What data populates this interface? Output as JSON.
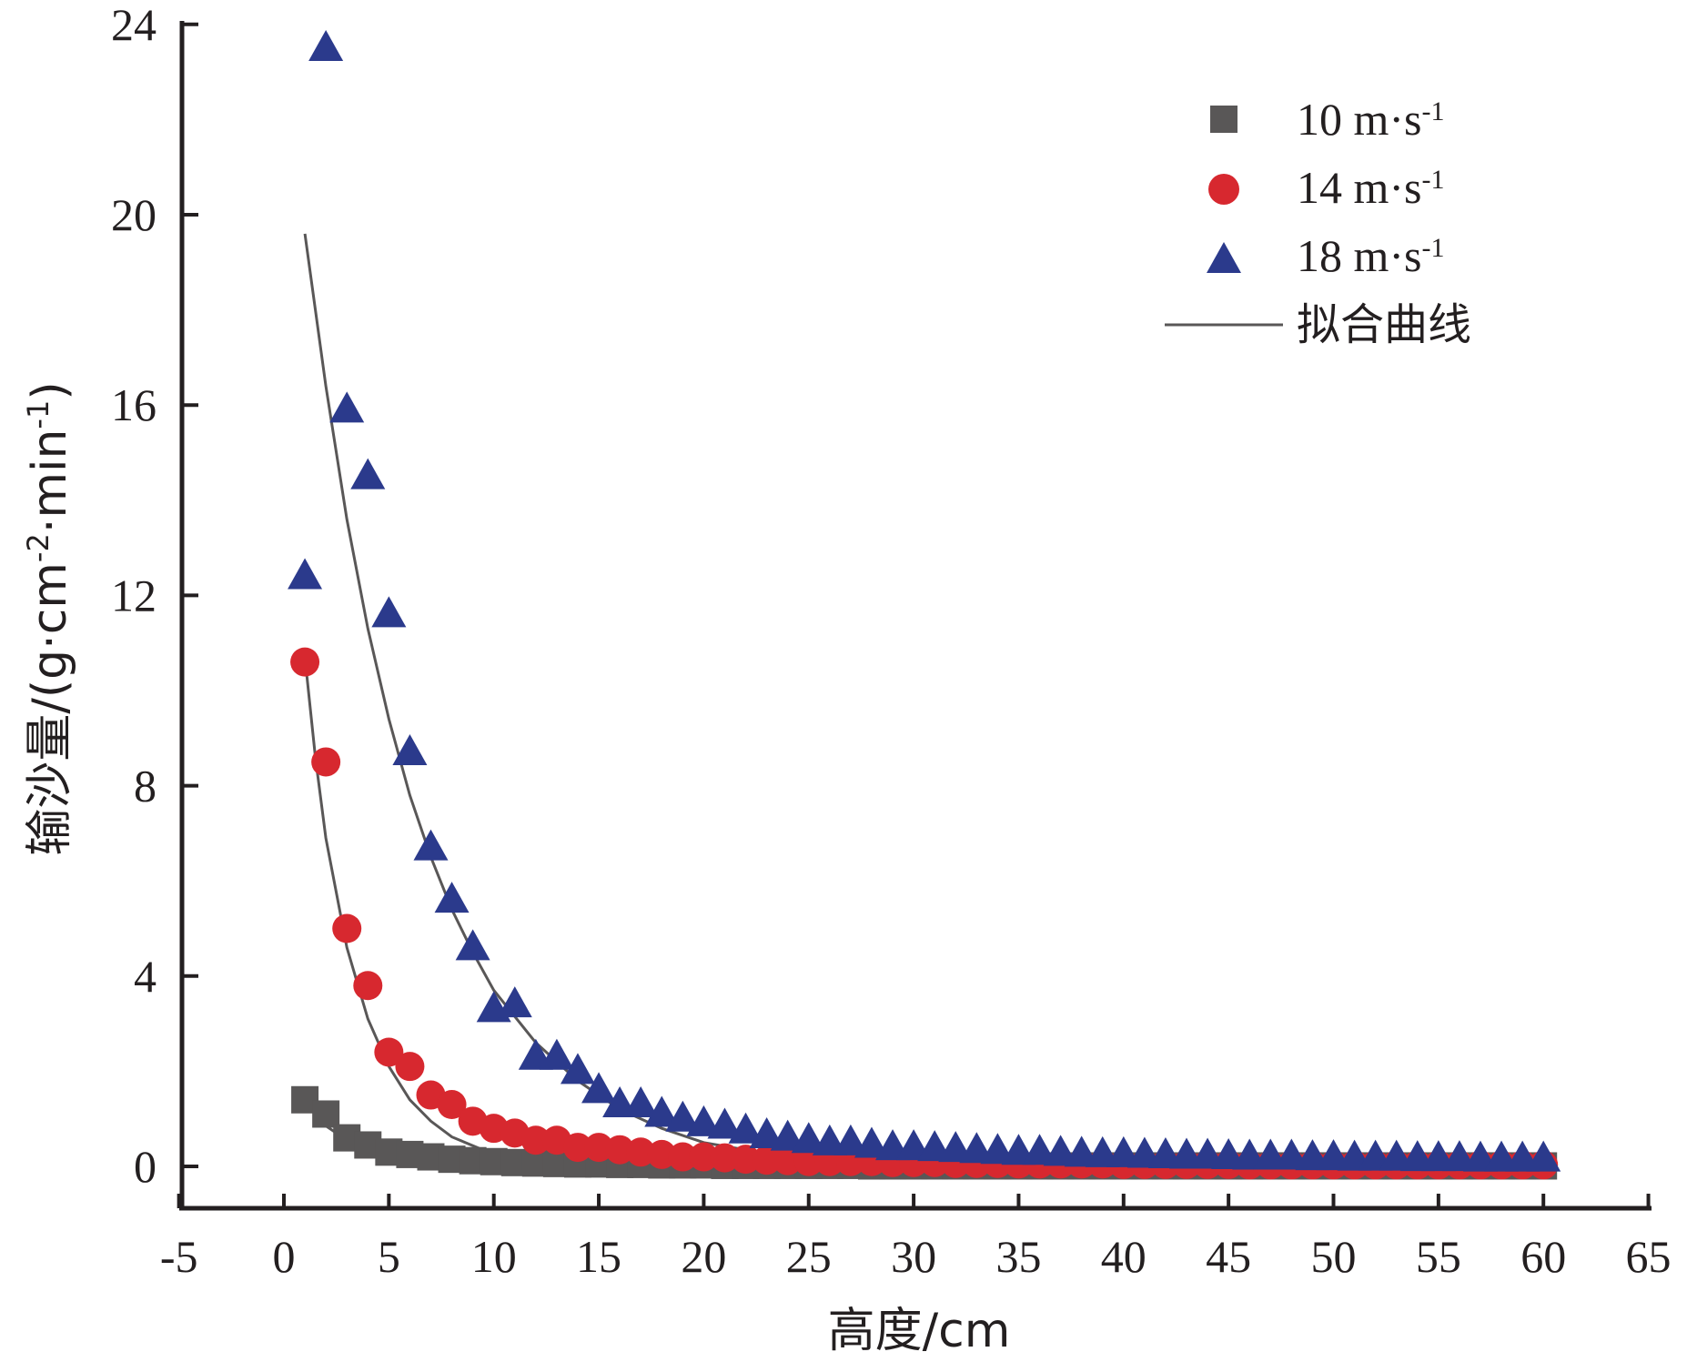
{
  "chart_data": {
    "type": "scatter",
    "title": "",
    "xlabel": "高度/cm",
    "ylabel_parts": {
      "prefix": "输沙量/(g·cm",
      "sup1": "-2",
      "mid": "·min",
      "sup2": "-1",
      "suffix": ")"
    },
    "xlim": [
      -5,
      65
    ],
    "ylim": [
      -1,
      24
    ],
    "xticks": [
      -5,
      0,
      5,
      10,
      15,
      20,
      25,
      30,
      35,
      40,
      45,
      50,
      55,
      60,
      65
    ],
    "yticks": [
      0,
      4,
      8,
      12,
      16,
      20,
      24
    ],
    "grid": false,
    "legend_position": "top-right",
    "series": [
      {
        "name": "10 m·s",
        "name_sup": "-1",
        "marker": "square",
        "color": "#595757",
        "x": [
          1,
          2,
          3,
          4,
          5,
          6,
          7,
          8,
          9,
          10,
          11,
          12,
          13,
          14,
          15,
          16,
          17,
          18,
          19,
          20,
          21,
          22,
          23,
          24,
          25,
          26,
          27,
          28,
          29,
          30,
          31,
          32,
          33,
          34,
          35,
          36,
          37,
          38,
          39,
          40,
          41,
          42,
          43,
          44,
          45,
          46,
          47,
          48,
          49,
          50,
          51,
          52,
          53,
          54,
          55,
          56,
          57,
          58,
          59,
          60
        ],
        "y": [
          1.4,
          1.1,
          0.6,
          0.45,
          0.3,
          0.25,
          0.2,
          0.15,
          0.12,
          0.1,
          0.08,
          0.07,
          0.06,
          0.05,
          0.05,
          0.04,
          0.04,
          0.03,
          0.03,
          0.03,
          0.02,
          0.02,
          0.02,
          0.02,
          0.02,
          0.02,
          0.02,
          0.01,
          0.01,
          0.01,
          0.01,
          0.01,
          0.01,
          0.01,
          0.01,
          0.01,
          0.01,
          0.01,
          0.01,
          0.01,
          0.01,
          0.01,
          0.01,
          0.01,
          0.01,
          0.01,
          0.01,
          0.01,
          0.01,
          0.01,
          0.01,
          0.01,
          0.01,
          0.01,
          0.01,
          0.01,
          0.01,
          0.01,
          0.01,
          0.01
        ]
      },
      {
        "name": "14 m·s",
        "name_sup": "-1",
        "marker": "circle",
        "color": "#d7282f",
        "x": [
          1,
          2,
          3,
          4,
          5,
          6,
          7,
          8,
          9,
          10,
          11,
          12,
          13,
          14,
          15,
          16,
          17,
          18,
          19,
          20,
          21,
          22,
          23,
          24,
          25,
          26,
          27,
          28,
          29,
          30,
          31,
          32,
          33,
          34,
          35,
          36,
          37,
          38,
          39,
          40,
          41,
          42,
          43,
          44,
          45,
          46,
          47,
          48,
          49,
          50,
          51,
          52,
          53,
          54,
          55,
          56,
          57,
          58,
          59,
          60
        ],
        "y": [
          10.6,
          8.5,
          5.0,
          3.8,
          2.4,
          2.1,
          1.5,
          1.3,
          0.95,
          0.8,
          0.7,
          0.55,
          0.55,
          0.4,
          0.4,
          0.35,
          0.3,
          0.25,
          0.2,
          0.2,
          0.18,
          0.15,
          0.13,
          0.12,
          0.1,
          0.1,
          0.1,
          0.1,
          0.08,
          0.08,
          0.08,
          0.06,
          0.06,
          0.06,
          0.05,
          0.05,
          0.05,
          0.05,
          0.05,
          0.04,
          0.04,
          0.04,
          0.04,
          0.04,
          0.04,
          0.03,
          0.03,
          0.03,
          0.03,
          0.03,
          0.03,
          0.03,
          0.03,
          0.03,
          0.03,
          0.03,
          0.03,
          0.03,
          0.03,
          0.03
        ]
      },
      {
        "name": "18 m·s",
        "name_sup": "-1",
        "marker": "triangle",
        "color": "#2b3a8c",
        "x": [
          1,
          2,
          3,
          4,
          5,
          6,
          7,
          8,
          9,
          10,
          11,
          12,
          13,
          14,
          15,
          16,
          17,
          18,
          19,
          20,
          21,
          22,
          23,
          24,
          25,
          26,
          27,
          28,
          29,
          30,
          31,
          32,
          33,
          34,
          35,
          36,
          37,
          38,
          39,
          40,
          41,
          42,
          43,
          44,
          45,
          46,
          47,
          48,
          49,
          50,
          51,
          52,
          53,
          54,
          55,
          56,
          57,
          58,
          59,
          60
        ],
        "y": [
          12.4,
          23.5,
          15.9,
          14.5,
          11.6,
          8.7,
          6.7,
          5.6,
          4.6,
          3.3,
          3.4,
          2.3,
          2.3,
          2.0,
          1.6,
          1.3,
          1.3,
          1.1,
          1.0,
          0.9,
          0.85,
          0.75,
          0.65,
          0.6,
          0.55,
          0.5,
          0.5,
          0.45,
          0.4,
          0.4,
          0.38,
          0.36,
          0.34,
          0.32,
          0.3,
          0.3,
          0.28,
          0.26,
          0.25,
          0.25,
          0.24,
          0.23,
          0.22,
          0.22,
          0.21,
          0.2,
          0.2,
          0.2,
          0.19,
          0.19,
          0.18,
          0.18,
          0.18,
          0.17,
          0.17,
          0.17,
          0.16,
          0.16,
          0.16,
          0.16
        ]
      }
    ],
    "fit_curves": {
      "name": "拟合曲线",
      "color": "#595757",
      "curves": [
        {
          "x": [
            1,
            1.5,
            2,
            3,
            4,
            5,
            6,
            8,
            10,
            15,
            20,
            30,
            40,
            50,
            60
          ],
          "y": [
            1.5,
            1.1,
            0.85,
            0.55,
            0.4,
            0.3,
            0.2,
            0.05,
            -0.02,
            -0.06,
            -0.08,
            -0.1,
            -0.11,
            -0.12,
            -0.12
          ]
        },
        {
          "x": [
            1,
            1.5,
            2,
            3,
            4,
            5,
            6,
            7,
            8,
            10,
            12,
            15,
            20,
            25,
            30,
            40,
            50,
            60
          ],
          "y": [
            10.7,
            8.6,
            6.9,
            4.6,
            3.1,
            2.1,
            1.4,
            0.95,
            0.62,
            0.25,
            0.06,
            -0.05,
            -0.1,
            -0.11,
            -0.11,
            -0.12,
            -0.12,
            -0.12
          ]
        },
        {
          "x": [
            1,
            2,
            3,
            4,
            5,
            6,
            7,
            8,
            9,
            10,
            12,
            14,
            16,
            18,
            20,
            25,
            30,
            35,
            40,
            50,
            60
          ],
          "y": [
            19.6,
            16.4,
            13.6,
            11.3,
            9.4,
            7.8,
            6.5,
            5.4,
            4.5,
            3.7,
            2.6,
            1.8,
            1.2,
            0.8,
            0.5,
            0.12,
            0.0,
            -0.03,
            -0.04,
            -0.04,
            -0.04
          ]
        }
      ]
    }
  }
}
